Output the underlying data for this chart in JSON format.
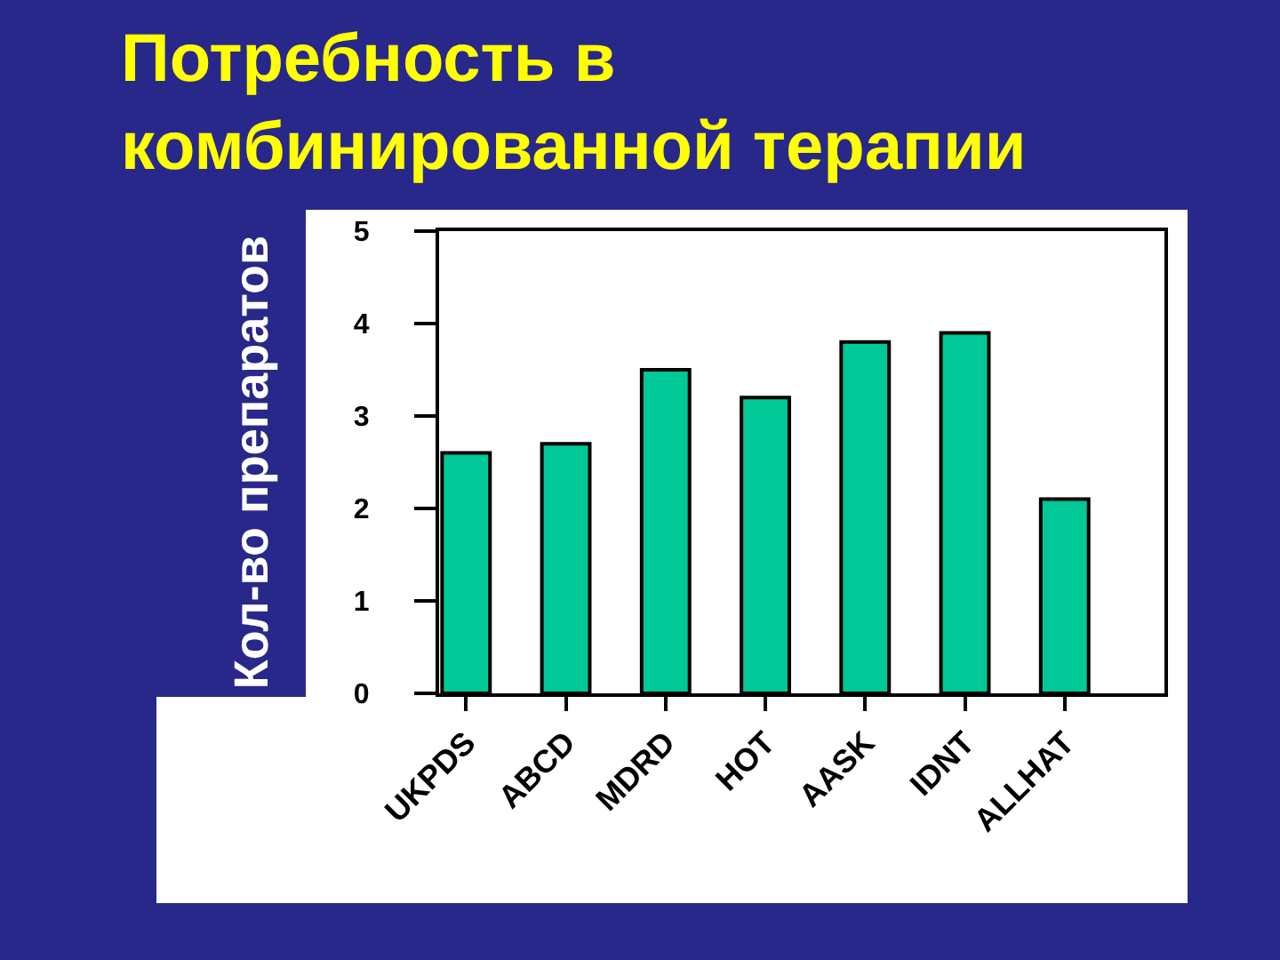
{
  "chart_data": {
    "type": "bar",
    "title": "Потребность в\nкомбинированной терапии",
    "ylabel": "Кол-во препаратов",
    "categories": [
      "UKPDS",
      "ABCD",
      "MDRD",
      "HOT",
      "AASK",
      "IDNT",
      "ALLHAT"
    ],
    "values": [
      2.6,
      2.7,
      3.5,
      3.2,
      3.8,
      3.9,
      2.1
    ],
    "color": "#00c896",
    "ylim": [
      0,
      5
    ],
    "yticks": [
      0,
      1,
      2,
      3,
      4,
      5
    ]
  }
}
